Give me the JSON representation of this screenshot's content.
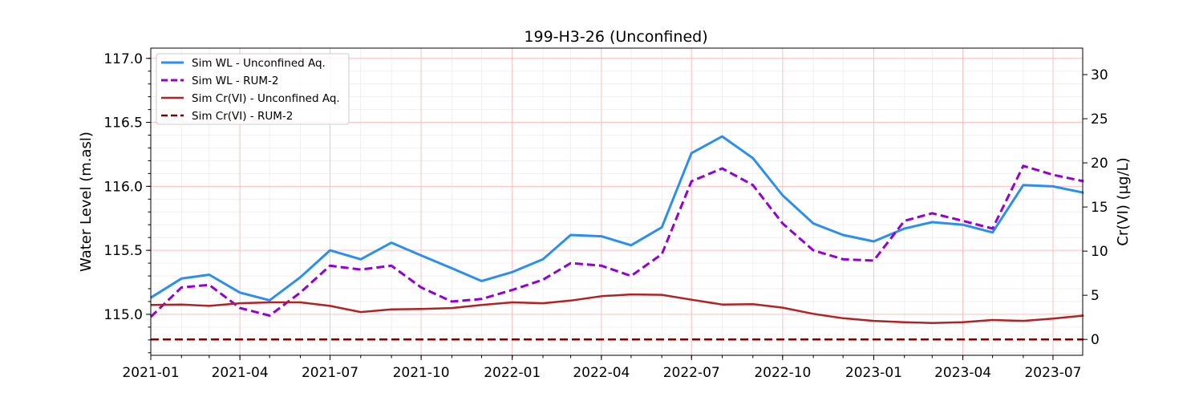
{
  "chart_data": {
    "type": "line",
    "title": "199-H3-26 (Unconfined)",
    "ylabel": "Water Level (m.asl)",
    "y2label": "Cr(VI) (µg/L)",
    "x_ticks": [
      "2021-01",
      "2021-04",
      "2021-07",
      "2021-10",
      "2022-01",
      "2022-04",
      "2022-07",
      "2022-10",
      "2023-01",
      "2023-04",
      "2023-07"
    ],
    "xlim": [
      "2021-01-01",
      "2023-07-31"
    ],
    "ylim": [
      114.68,
      117.08
    ],
    "y_ticks": [
      "115.0",
      "115.5",
      "116.0",
      "116.5",
      "117.0"
    ],
    "y2lim": [
      -1.8,
      33.0
    ],
    "y2_ticks": [
      "0",
      "5",
      "10",
      "15",
      "20",
      "25",
      "30"
    ],
    "grid": true,
    "legend_position": "top-left",
    "x": [
      "2021-01-01",
      "2021-02-01",
      "2021-03-01",
      "2021-04-01",
      "2021-05-01",
      "2021-06-01",
      "2021-07-01",
      "2021-08-01",
      "2021-09-01",
      "2021-10-01",
      "2021-11-01",
      "2021-12-01",
      "2022-01-01",
      "2022-02-01",
      "2022-03-01",
      "2022-04-01",
      "2022-05-01",
      "2022-06-01",
      "2022-07-01",
      "2022-08-01",
      "2022-09-01",
      "2022-10-01",
      "2022-11-01",
      "2022-12-01",
      "2023-01-01",
      "2023-02-01",
      "2023-03-01",
      "2023-04-01",
      "2023-05-01",
      "2023-06-01",
      "2023-07-01",
      "2023-08-01"
    ],
    "series": [
      {
        "name": "Sim WL - Unconfined Aq.",
        "axis": "left",
        "color": "#2a8ff0",
        "dash": "solid",
        "values": [
          115.13,
          115.28,
          115.31,
          115.17,
          115.11,
          115.29,
          115.5,
          115.43,
          115.56,
          115.46,
          115.36,
          115.26,
          115.33,
          115.43,
          115.62,
          115.61,
          115.54,
          115.68,
          116.26,
          116.39,
          116.22,
          115.93,
          115.71,
          115.62,
          115.57,
          115.67,
          115.72,
          115.7,
          115.64,
          116.01,
          116.0,
          115.95
        ]
      },
      {
        "name": "Sim WL - RUM-2",
        "axis": "left",
        "color": "#9400d3",
        "dash": "dashed",
        "values": [
          114.98,
          115.21,
          115.23,
          115.05,
          114.99,
          115.17,
          115.38,
          115.35,
          115.38,
          115.21,
          115.1,
          115.12,
          115.19,
          115.27,
          115.4,
          115.38,
          115.3,
          115.47,
          116.04,
          116.14,
          116.01,
          115.71,
          115.5,
          115.43,
          115.42,
          115.73,
          115.79,
          115.73,
          115.67,
          116.16,
          116.09,
          116.04
        ]
      },
      {
        "name": "Sim Cr(VI) - Unconfined Aq.",
        "axis": "right",
        "color": "#b22222",
        "dash": "solid",
        "values": [
          3.9,
          3.95,
          3.8,
          4.1,
          4.2,
          4.2,
          3.8,
          3.1,
          3.4,
          3.45,
          3.55,
          3.9,
          4.2,
          4.1,
          4.4,
          4.9,
          5.1,
          5.05,
          4.5,
          3.95,
          4.0,
          3.6,
          2.9,
          2.4,
          2.1,
          1.95,
          1.85,
          1.95,
          2.2,
          2.1,
          2.35,
          2.7
        ]
      },
      {
        "name": "Sim Cr(VI) - RUM-2",
        "axis": "right",
        "color": "#800000",
        "dash": "dashed",
        "values": [
          0,
          0,
          0,
          0,
          0,
          0,
          0,
          0,
          0,
          0,
          0,
          0,
          0,
          0,
          0,
          0,
          0,
          0,
          0,
          0,
          0,
          0,
          0,
          0,
          0,
          0,
          0,
          0,
          0,
          0,
          0,
          0
        ]
      }
    ]
  }
}
